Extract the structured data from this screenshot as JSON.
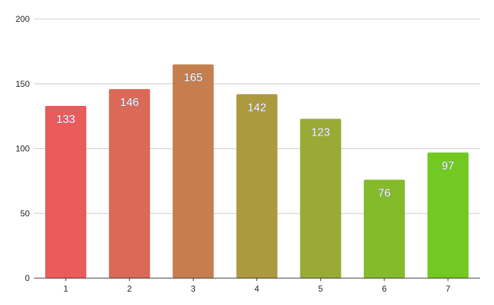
{
  "chart_data": {
    "type": "bar",
    "title": "",
    "xlabel": "",
    "ylabel": "",
    "categories": [
      "1",
      "2",
      "3",
      "4",
      "5",
      "6",
      "7"
    ],
    "values": [
      133,
      146,
      165,
      142,
      123,
      76,
      97
    ],
    "ylim": [
      0,
      200
    ],
    "yticks": [
      0,
      50,
      100,
      150,
      200
    ],
    "grid": true,
    "legend": "none",
    "data_labels": true,
    "colors": [
      "#ea5b5b",
      "#da6a57",
      "#c67e4f",
      "#ad9a3f",
      "#9aab35",
      "#83bb2b",
      "#72c922"
    ]
  }
}
